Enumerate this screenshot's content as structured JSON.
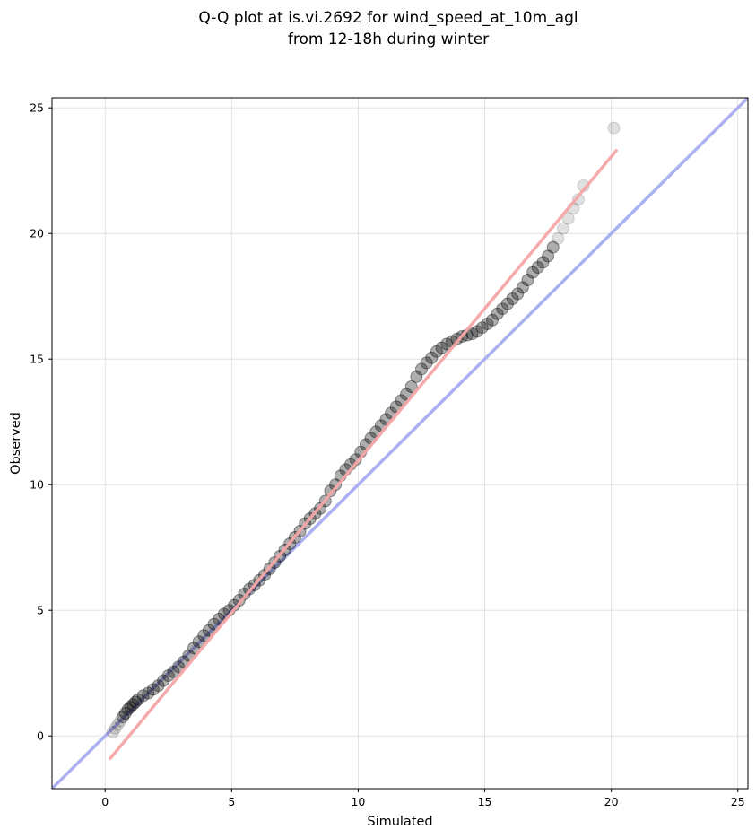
{
  "chart_data": {
    "type": "scatter",
    "title": "Q-Q plot at is.vi.2692 for wind_speed_at_10m_agl",
    "subtitle": "from 12-18h during winter",
    "xlabel": "Simulated",
    "ylabel": "Observed",
    "xlim": [
      -2.1,
      25.4
    ],
    "ylim": [
      -2.1,
      25.4
    ],
    "xticks": [
      0,
      5,
      10,
      15,
      20,
      25
    ],
    "yticks": [
      0,
      5,
      10,
      15,
      20,
      25
    ],
    "grid": true,
    "colors": {
      "points": "#000000",
      "identity_line": "#aab0f0",
      "fit_line": "#f4a6a6"
    },
    "series": [
      {
        "type": "scatter",
        "x": [
          0.3,
          0.4,
          0.5,
          0.6,
          0.7,
          0.8,
          0.9,
          1.0,
          1.1,
          1.2,
          1.3,
          1.5,
          1.7,
          1.9,
          2.1,
          2.3,
          2.5,
          2.7,
          2.9,
          3.1,
          3.3,
          3.5,
          3.7,
          3.9,
          4.1,
          4.3,
          4.5,
          4.7,
          4.9,
          5.1,
          5.3,
          5.5,
          5.7,
          5.9,
          6.1,
          6.3,
          6.5,
          6.7,
          6.9,
          7.1,
          7.3,
          7.5,
          7.7,
          7.9,
          8.1,
          8.3,
          8.5,
          8.7,
          8.9,
          9.1,
          9.3,
          9.5,
          9.7,
          9.9,
          10.1,
          10.3,
          10.5,
          10.7,
          10.9,
          11.1,
          11.3,
          11.5,
          11.7,
          11.9,
          12.1,
          12.3,
          12.5,
          12.7,
          12.9,
          13.1,
          13.3,
          13.5,
          13.7,
          13.9,
          14.1,
          14.3,
          14.5,
          14.7,
          14.9,
          15.1,
          15.3,
          15.5,
          15.7,
          15.9,
          16.1,
          16.3,
          16.5,
          16.7,
          16.9,
          17.1,
          17.3,
          17.5,
          17.7,
          17.9,
          18.1,
          18.3,
          18.5,
          18.7,
          18.9,
          20.1
        ],
        "y": [
          0.15,
          0.3,
          0.45,
          0.6,
          0.75,
          0.9,
          1.05,
          1.15,
          1.25,
          1.35,
          1.45,
          1.6,
          1.7,
          1.85,
          2.0,
          2.2,
          2.4,
          2.55,
          2.75,
          2.95,
          3.2,
          3.5,
          3.75,
          4.0,
          4.2,
          4.45,
          4.65,
          4.85,
          5.0,
          5.2,
          5.4,
          5.65,
          5.85,
          6.0,
          6.2,
          6.4,
          6.65,
          6.9,
          7.15,
          7.4,
          7.65,
          7.9,
          8.15,
          8.45,
          8.65,
          8.85,
          9.05,
          9.35,
          9.75,
          10.0,
          10.35,
          10.6,
          10.8,
          11.0,
          11.3,
          11.6,
          11.85,
          12.1,
          12.35,
          12.6,
          12.85,
          13.1,
          13.35,
          13.6,
          13.9,
          14.3,
          14.6,
          14.85,
          15.05,
          15.3,
          15.45,
          15.6,
          15.7,
          15.8,
          15.9,
          15.95,
          16.0,
          16.1,
          16.25,
          16.4,
          16.55,
          16.8,
          17.0,
          17.2,
          17.4,
          17.6,
          17.85,
          18.15,
          18.45,
          18.65,
          18.85,
          19.1,
          19.45,
          19.8,
          20.2,
          20.6,
          21.0,
          21.35,
          21.9,
          24.2
        ]
      },
      {
        "type": "line",
        "name": "",
        "x": [
          -2.1,
          25.4
        ],
        "y": [
          -2.1,
          25.4
        ]
      },
      {
        "type": "line",
        "name": "",
        "x": [
          0.2,
          20.2
        ],
        "y": [
          -0.9,
          23.3
        ]
      }
    ]
  }
}
